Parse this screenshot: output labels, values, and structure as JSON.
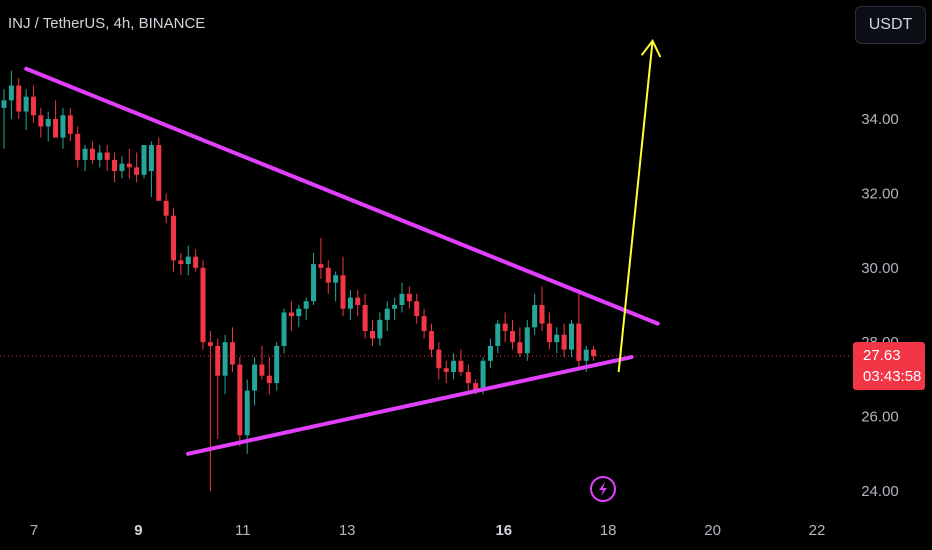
{
  "header": {
    "title": "INJ / TetherUS, 4h, BINANCE",
    "currency_label": "USDT"
  },
  "price_badge": {
    "price": "27.63",
    "countdown": "03:43:58"
  },
  "colors": {
    "up": "#26a69a",
    "down": "#f23645",
    "trendline": "#e040fb",
    "arrow": "#ffff33",
    "background": "#000000",
    "axis_text": "#b2b5be"
  },
  "icons": {
    "flash": "lightning-bolt-icon"
  },
  "chart_data": {
    "type": "candlestick",
    "symbol": "INJ / TetherUS",
    "interval": "4h",
    "exchange": "BINANCE",
    "y_ticks": [
      "34.00",
      "32.00",
      "30.00",
      "28.00",
      "26.00",
      "24.00"
    ],
    "x_ticks": [
      {
        "label": "7",
        "day": 7,
        "bold": false
      },
      {
        "label": "9",
        "day": 9,
        "bold": true
      },
      {
        "label": "11",
        "day": 11,
        "bold": false
      },
      {
        "label": "13",
        "day": 13,
        "bold": false
      },
      {
        "label": "16",
        "day": 16,
        "bold": true
      },
      {
        "label": "18",
        "day": 18,
        "bold": false
      },
      {
        "label": "20",
        "day": 20,
        "bold": false
      },
      {
        "label": "22",
        "day": 22,
        "bold": false
      }
    ],
    "ylim": [
      23.5,
      36.7
    ],
    "last_price": 27.63,
    "grid": false,
    "candles": [
      [
        34.3,
        34.8,
        33.2,
        34.5
      ],
      [
        34.5,
        35.3,
        34.0,
        34.9
      ],
      [
        34.9,
        35.1,
        34.0,
        34.2
      ],
      [
        34.2,
        34.8,
        33.7,
        34.6
      ],
      [
        34.6,
        34.9,
        33.9,
        34.1
      ],
      [
        34.1,
        34.3,
        33.5,
        33.8
      ],
      [
        33.8,
        34.2,
        33.4,
        34.0
      ],
      [
        34.0,
        34.5,
        33.6,
        33.5
      ],
      [
        33.5,
        34.3,
        33.2,
        34.1
      ],
      [
        34.1,
        34.3,
        33.4,
        33.6
      ],
      [
        33.6,
        33.8,
        32.7,
        32.9
      ],
      [
        32.9,
        33.3,
        32.6,
        33.2
      ],
      [
        33.2,
        33.4,
        32.8,
        32.9
      ],
      [
        32.9,
        33.3,
        32.7,
        33.1
      ],
      [
        33.1,
        33.3,
        32.6,
        32.9
      ],
      [
        32.9,
        33.1,
        32.3,
        32.6
      ],
      [
        32.6,
        33.0,
        32.4,
        32.8
      ],
      [
        32.8,
        33.2,
        32.4,
        32.7
      ],
      [
        32.7,
        33.1,
        32.3,
        32.5
      ],
      [
        32.5,
        33.2,
        32.4,
        33.3
      ],
      [
        32.6,
        33.4,
        31.9,
        33.3
      ],
      [
        33.3,
        33.5,
        31.8,
        31.8
      ],
      [
        31.8,
        32.0,
        31.2,
        31.4
      ],
      [
        31.4,
        31.6,
        29.9,
        30.2
      ],
      [
        30.2,
        30.4,
        29.8,
        30.1
      ],
      [
        30.1,
        30.6,
        29.8,
        30.3
      ],
      [
        30.3,
        30.5,
        29.9,
        30.0
      ],
      [
        30.0,
        30.2,
        27.8,
        28.0
      ],
      [
        28.0,
        28.3,
        24.0,
        27.9
      ],
      [
        27.9,
        28.1,
        25.4,
        27.1
      ],
      [
        27.1,
        28.2,
        26.6,
        28.0
      ],
      [
        28.0,
        28.4,
        27.2,
        27.4
      ],
      [
        27.4,
        27.6,
        25.2,
        25.5
      ],
      [
        25.5,
        27.0,
        25.0,
        26.7
      ],
      [
        26.7,
        27.6,
        26.3,
        27.4
      ],
      [
        27.4,
        27.9,
        27.0,
        27.1
      ],
      [
        27.1,
        27.6,
        26.6,
        26.9
      ],
      [
        26.9,
        28.0,
        26.7,
        27.9
      ],
      [
        27.9,
        28.9,
        27.7,
        28.8
      ],
      [
        28.8,
        29.1,
        28.3,
        28.7
      ],
      [
        28.7,
        29.0,
        28.4,
        28.9
      ],
      [
        28.9,
        29.2,
        28.6,
        29.1
      ],
      [
        29.1,
        30.4,
        29.0,
        30.1
      ],
      [
        30.1,
        30.8,
        29.7,
        30.0
      ],
      [
        30.0,
        30.2,
        29.3,
        29.6
      ],
      [
        29.6,
        29.9,
        29.1,
        29.8
      ],
      [
        29.8,
        30.3,
        28.7,
        28.9
      ],
      [
        28.9,
        29.4,
        28.6,
        29.2
      ],
      [
        29.2,
        29.4,
        28.7,
        29.0
      ],
      [
        29.0,
        29.3,
        28.1,
        28.3
      ],
      [
        28.3,
        28.6,
        27.9,
        28.1
      ],
      [
        28.1,
        28.8,
        27.9,
        28.6
      ],
      [
        28.6,
        29.1,
        28.3,
        28.9
      ],
      [
        28.9,
        29.2,
        28.6,
        29.0
      ],
      [
        29.0,
        29.6,
        28.8,
        29.3
      ],
      [
        29.3,
        29.5,
        28.9,
        29.1
      ],
      [
        29.1,
        29.3,
        28.5,
        28.7
      ],
      [
        28.7,
        28.9,
        28.1,
        28.3
      ],
      [
        28.3,
        28.5,
        27.6,
        27.8
      ],
      [
        27.8,
        28.0,
        27.0,
        27.3
      ],
      [
        27.3,
        27.5,
        26.9,
        27.2
      ],
      [
        27.2,
        27.7,
        27.0,
        27.5
      ],
      [
        27.5,
        27.8,
        27.1,
        27.2
      ],
      [
        27.2,
        27.4,
        26.7,
        26.9
      ],
      [
        26.9,
        27.0,
        26.6,
        26.7
      ],
      [
        26.7,
        27.6,
        26.6,
        27.5
      ],
      [
        27.5,
        28.1,
        27.3,
        27.9
      ],
      [
        27.9,
        28.6,
        27.7,
        28.5
      ],
      [
        28.5,
        28.8,
        28.0,
        28.3
      ],
      [
        28.3,
        28.6,
        27.8,
        28.0
      ],
      [
        28.0,
        28.4,
        27.6,
        27.7
      ],
      [
        27.7,
        28.6,
        27.5,
        28.4
      ],
      [
        28.4,
        29.3,
        28.2,
        29.0
      ],
      [
        29.0,
        29.5,
        28.3,
        28.5
      ],
      [
        28.5,
        28.8,
        27.8,
        28.0
      ],
      [
        28.0,
        28.4,
        27.7,
        28.2
      ],
      [
        28.2,
        28.5,
        27.6,
        27.8
      ],
      [
        27.8,
        28.6,
        27.6,
        28.5
      ],
      [
        28.5,
        29.3,
        27.3,
        27.5
      ],
      [
        27.5,
        27.9,
        27.2,
        27.8
      ],
      [
        27.8,
        27.9,
        27.5,
        27.63
      ]
    ],
    "trendlines": [
      {
        "name": "upper",
        "color": "#e040fb",
        "from": [
          6.85,
          35.35
        ],
        "to": [
          18.95,
          28.5
        ]
      },
      {
        "name": "lower",
        "color": "#e040fb",
        "from": [
          9.95,
          25.0
        ],
        "to": [
          18.45,
          27.6
        ]
      }
    ],
    "arrow": {
      "color": "#ffff33",
      "from": [
        18.2,
        27.2
      ],
      "to": [
        18.85,
        36.1
      ]
    }
  }
}
